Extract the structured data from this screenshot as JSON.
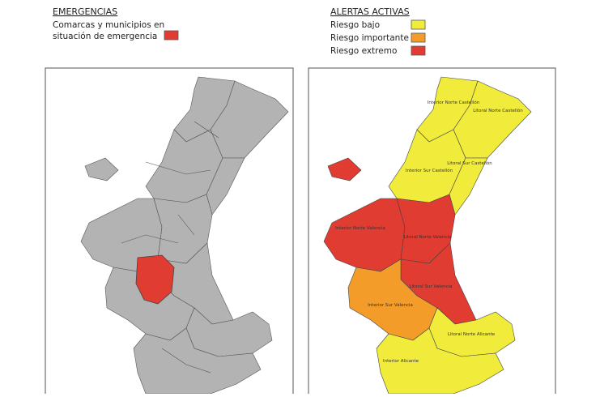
{
  "left_panel": {
    "legend": {
      "title": "EMERGENCIAS",
      "items": [
        {
          "lines": [
            "Comarcas y municipios en",
            "situación de emergencia"
          ],
          "color": "#e03c31"
        }
      ]
    },
    "base_color": "#b3b3b3"
  },
  "right_panel": {
    "legend": {
      "title": "ALERTAS ACTIVAS",
      "items": [
        {
          "label": "Riesgo bajo",
          "color": "#f1ec3c"
        },
        {
          "label": "Riesgo importante",
          "color": "#f39c2a"
        },
        {
          "label": "Riesgo extremo",
          "color": "#e03c31"
        }
      ]
    },
    "zones": [
      {
        "label": "Interior Norte Castellón",
        "color": "#f1ec3c"
      },
      {
        "label": "Litoral Norte Castellón",
        "color": "#f1ec3c"
      },
      {
        "label": "Interior Sur Castellón",
        "color": "#f1ec3c"
      },
      {
        "label": "Litoral Sur Castellón",
        "color": "#f1ec3c"
      },
      {
        "label": "Interior Norte Valencia",
        "color": "#e03c31"
      },
      {
        "label": "Litoral Norte Valencia",
        "color": "#e03c31"
      },
      {
        "label": "Litoral Sur Valencia",
        "color": "#e03c31"
      },
      {
        "label": "Interior Sur Valencia",
        "color": "#f39c2a"
      },
      {
        "label": "Litoral Norte Alicante",
        "color": "#f1ec3c"
      },
      {
        "label": "Interior Alicante",
        "color": "#f1ec3c"
      }
    ]
  }
}
